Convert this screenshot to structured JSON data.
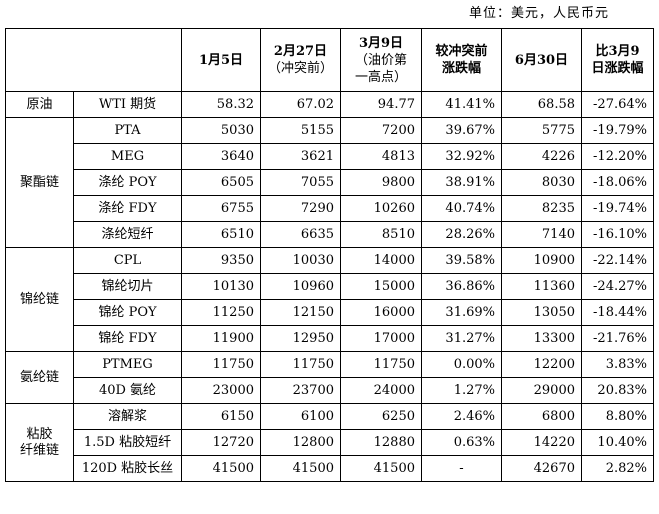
{
  "unit_label": "单位：美元，人民币元",
  "headers": {
    "col1": "1月5日",
    "col2_main": "2月27日",
    "col2_sub": "（冲突前）",
    "col3_main": "3月9日",
    "col3_sub_1": "（油价第",
    "col3_sub_2": "一高点）",
    "col4_line1": "较冲突前",
    "col4_line2": "涨跌幅",
    "col5": "6月30日",
    "col6_line1": "比3月9",
    "col6_line2": "日涨跌幅"
  },
  "groups": [
    {
      "name_line1": "原油",
      "name_line2": "",
      "rows": [
        {
          "item": "WTI 期货",
          "jan5": "58.32",
          "feb27": "67.02",
          "mar9": "94.77",
          "chg_pre": "41.41%",
          "jun30": "68.58",
          "chg_mar9": "-27.64%"
        }
      ]
    },
    {
      "name_line1": "聚酯链",
      "name_line2": "",
      "rows": [
        {
          "item": "PTA",
          "jan5": "5030",
          "feb27": "5155",
          "mar9": "7200",
          "chg_pre": "39.67%",
          "jun30": "5775",
          "chg_mar9": "-19.79%"
        },
        {
          "item": "MEG",
          "jan5": "3640",
          "feb27": "3621",
          "mar9": "4813",
          "chg_pre": "32.92%",
          "jun30": "4226",
          "chg_mar9": "-12.20%"
        },
        {
          "item": "涤纶 POY",
          "jan5": "6505",
          "feb27": "7055",
          "mar9": "9800",
          "chg_pre": "38.91%",
          "jun30": "8030",
          "chg_mar9": "-18.06%"
        },
        {
          "item": "涤纶 FDY",
          "jan5": "6755",
          "feb27": "7290",
          "mar9": "10260",
          "chg_pre": "40.74%",
          "jun30": "8235",
          "chg_mar9": "-19.74%"
        },
        {
          "item": "涤纶短纤",
          "jan5": "6510",
          "feb27": "6635",
          "mar9": "8510",
          "chg_pre": "28.26%",
          "jun30": "7140",
          "chg_mar9": "-16.10%"
        }
      ]
    },
    {
      "name_line1": "锦纶链",
      "name_line2": "",
      "rows": [
        {
          "item": "CPL",
          "jan5": "9350",
          "feb27": "10030",
          "mar9": "14000",
          "chg_pre": "39.58%",
          "jun30": "10900",
          "chg_mar9": "-22.14%"
        },
        {
          "item": "锦纶切片",
          "jan5": "10130",
          "feb27": "10960",
          "mar9": "15000",
          "chg_pre": "36.86%",
          "jun30": "11360",
          "chg_mar9": "-24.27%"
        },
        {
          "item": "锦纶 POY",
          "jan5": "11250",
          "feb27": "12150",
          "mar9": "16000",
          "chg_pre": "31.69%",
          "jun30": "13050",
          "chg_mar9": "-18.44%"
        },
        {
          "item": "锦纶 FDY",
          "jan5": "11900",
          "feb27": "12950",
          "mar9": "17000",
          "chg_pre": "31.27%",
          "jun30": "13300",
          "chg_mar9": "-21.76%"
        }
      ]
    },
    {
      "name_line1": "氨纶链",
      "name_line2": "",
      "rows": [
        {
          "item": "PTMEG",
          "jan5": "11750",
          "feb27": "11750",
          "mar9": "11750",
          "chg_pre": "0.00%",
          "jun30": "12200",
          "chg_mar9": "3.83%"
        },
        {
          "item": "40D 氨纶",
          "jan5": "23000",
          "feb27": "23700",
          "mar9": "24000",
          "chg_pre": "1.27%",
          "jun30": "29000",
          "chg_mar9": "20.83%"
        }
      ]
    },
    {
      "name_line1": "粘胶",
      "name_line2": "纤维链",
      "rows": [
        {
          "item": "溶解浆",
          "jan5": "6150",
          "feb27": "6100",
          "mar9": "6250",
          "chg_pre": "2.46%",
          "jun30": "6800",
          "chg_mar9": "8.80%"
        },
        {
          "item": "1.5D 粘胶短纤",
          "jan5": "12720",
          "feb27": "12800",
          "mar9": "12880",
          "chg_pre": "0.63%",
          "jun30": "14220",
          "chg_mar9": "10.40%"
        },
        {
          "item": "120D 粘胶长丝",
          "jan5": "41500",
          "feb27": "41500",
          "mar9": "41500",
          "chg_pre": "-",
          "jun30": "42670",
          "chg_mar9": "2.82%"
        }
      ]
    }
  ]
}
